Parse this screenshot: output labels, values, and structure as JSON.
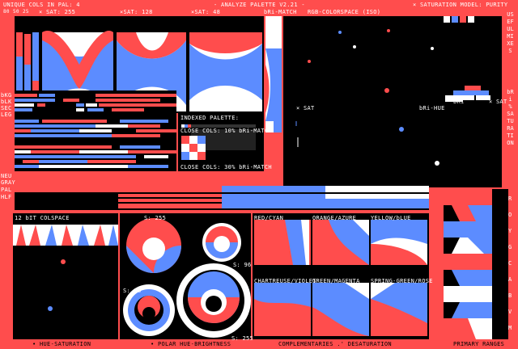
{
  "header": {
    "unique_cols": "UNIQUE COLS IN PAL: 4",
    "title": "- ANALYZE PALETTE V2.21 -",
    "saturation_model": "× SATURATION MODEL: PURITY",
    "sat_full": "× SAT: 255",
    "sat_mid": "×SAT: 128",
    "sat_low": "×SAT: 48",
    "bri_match_top": "bRi-MATCH",
    "rgb_title": "RGB-COLORSPACE (ISO)",
    "small_ticks": [
      "80",
      "50",
      "25"
    ]
  },
  "right_rail": {
    "useful_mixes": "USEFUL MIXES",
    "bri_sat": "bRi % SATURATION",
    "letters": [
      "R",
      "O",
      "Y",
      "G",
      "C",
      "A",
      "B",
      "V",
      "M"
    ]
  },
  "left_labels": {
    "bkg": "bKG",
    "blk": "bLK",
    "sec": "SEC",
    "leg": "LEG",
    "rows2": [
      "NEU",
      "GRAY",
      "PAL",
      "HLF"
    ]
  },
  "indexed": {
    "title": "INDEXED PALETTE:",
    "close_10": "CLOSE COLS: 10% bRi-MATCH",
    "close_30": "CLOSE COLS: 30% bRi-MATCH"
  },
  "rgb_space": {
    "x_sat": "× SAT",
    "bri_hue": "bRi-HUE",
    "bri": "bRi",
    "x_sat2": "× SAT"
  },
  "lower": {
    "colspace_12bit": "12 bIT COLSPACE",
    "s255": "S: 255",
    "s96": "S: 96",
    "s96b": "S: 96",
    "s255b": "S: 255",
    "complements": [
      "RED/CYAN",
      "ORANGE/AZURE",
      "YELLOW/bLUE",
      "CHARTREUSE/VIOLET",
      "GREEN/MAGENTA",
      "SPRING-GREEN/ROSE"
    ]
  },
  "footer": {
    "hue_sat": "• HUE-SATURATION",
    "polar": "• POLAR HUE-BRIGHTNESS",
    "complementaries": "COMPLEMENTARIES .' DESATURATION",
    "primary": "PRIMARY RANGES"
  },
  "colors": {
    "red": "#ff4d4d",
    "blue": "#5c8cff",
    "white": "#ffffff",
    "black": "#000000"
  }
}
